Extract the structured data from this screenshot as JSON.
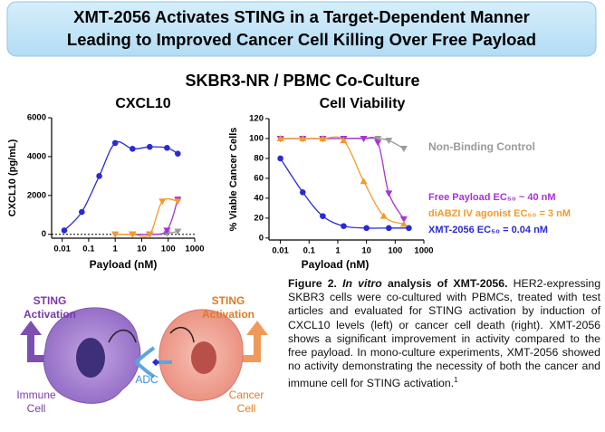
{
  "header": {
    "title": [
      "XMT-2056 Activates STING in a Target-Dependent Manner",
      "Leading to Improved Cancer Cell Killing Over Free Payload"
    ]
  },
  "subtitle": "SKBR3-NR / PBMC Co-Culture",
  "chart_data": [
    {
      "type": "line",
      "title": "CXCL10",
      "x_label": "Payload (nM)",
      "y_label": "CXCL10 (pg/mL)",
      "xscale": "log",
      "xlim": [
        0.004,
        1000
      ],
      "xticks": [
        0.01,
        0.1,
        1,
        10,
        100,
        1000
      ],
      "ylim": [
        -200,
        6000
      ],
      "yticks": [
        0,
        2000,
        4000,
        6000
      ],
      "series": [
        {
          "color": "#9a9a9a",
          "marker": "triangle-down",
          "x": [
            4.5,
            20,
            90,
            230
          ],
          "values": [
            0,
            0,
            50,
            150
          ]
        },
        {
          "color": "#a733d6",
          "marker": "triangle-down",
          "x": [
            1,
            4.5,
            20,
            90,
            230
          ],
          "values": [
            0,
            0,
            0,
            200,
            1800
          ]
        },
        {
          "color": "#f39a2a",
          "marker": "triangle-down",
          "x": [
            1,
            4.5,
            20,
            60,
            230
          ],
          "values": [
            0,
            0,
            0,
            1700,
            1700
          ]
        },
        {
          "color": "#2a2ad6",
          "marker": "circle",
          "x": [
            0.012,
            0.055,
            0.25,
            1,
            4.5,
            20,
            90,
            230
          ],
          "values": [
            200,
            1150,
            3000,
            4700,
            4400,
            4500,
            4450,
            4150
          ]
        }
      ]
    },
    {
      "type": "line",
      "title": "Cell Viability",
      "x_label": "Payload (nM)",
      "y_label": "% Viable Cancer Cells",
      "xscale": "log",
      "xlim": [
        0.004,
        1000
      ],
      "xticks": [
        0.01,
        0.1,
        1,
        10,
        100,
        1000
      ],
      "ylim": [
        -2,
        120
      ],
      "yticks": [
        0,
        20,
        40,
        60,
        80,
        100,
        120
      ],
      "series": [
        {
          "name": "Non-Binding Control",
          "color": "#9a9a9a",
          "marker": "triangle-down",
          "x": [
            0.01,
            0.06,
            0.3,
            1.6,
            8,
            25,
            60,
            200
          ],
          "values": [
            100,
            100,
            100,
            100,
            100,
            100,
            98,
            90
          ]
        },
        {
          "name": "Free Payload EC₅₀ ~ 40 nM",
          "color": "#a733d6",
          "marker": "triangle-down",
          "x": [
            0.01,
            0.06,
            0.3,
            1.6,
            8,
            25,
            60,
            200
          ],
          "values": [
            100,
            100,
            100,
            100,
            100,
            96,
            45,
            19
          ]
        },
        {
          "name": "diABZI IV agonist EC₅₀ = 3 nM",
          "color": "#f39a2a",
          "marker": "triangle-up",
          "x": [
            0.01,
            0.06,
            0.3,
            1.6,
            8,
            40,
            200
          ],
          "values": [
            100,
            100,
            100,
            98,
            57,
            22,
            14
          ]
        },
        {
          "name": "XMT-2056 EC₅₀ = 0.04 nM",
          "color": "#2a2ad6",
          "marker": "circle",
          "x": [
            0.01,
            0.06,
            0.3,
            1.6,
            10,
            60,
            300
          ],
          "values": [
            80,
            46,
            22,
            12,
            10,
            10,
            10
          ]
        }
      ]
    }
  ],
  "caption": {
    "figure": "Figure 2.",
    "italic": "In vitro",
    "lead": "analysis of XMT-2056.",
    "body": "HER2-expressing SKBR3 cells were co-cultured with PBMCs, treated with test articles and evaluated for STING activation by induction of CXCL10 levels (left) or cancer cell death (right). XMT-2056 shows a significant improvement in activity compared to the free payload. In mono-culture experiments, XMT-2056 showed no activity demonstrating the necessity of both the cancer and immune cell for STING activation.",
    "ref": "1"
  },
  "diagram": {
    "left_label": [
      "STING",
      "Activation"
    ],
    "right_label": [
      "STING",
      "Activation"
    ],
    "adc": "ADC",
    "immune": [
      "Immune",
      "Cell"
    ],
    "cancer": [
      "Cancer",
      "Cell"
    ]
  }
}
